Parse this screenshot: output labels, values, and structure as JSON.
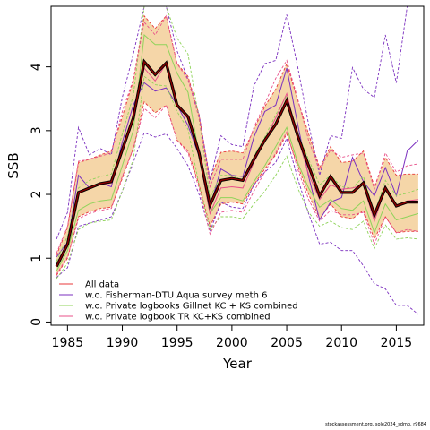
{
  "chart_data": {
    "type": "line",
    "title": "",
    "xlabel": "Year",
    "ylabel": "SSB",
    "xlim": [
      1983.5,
      2017.5
    ],
    "ylim": [
      -0.05,
      4.95
    ],
    "xticks": [
      1985,
      1990,
      1995,
      2000,
      2005,
      2010,
      2015
    ],
    "yticks": [
      0,
      1,
      2,
      3,
      4
    ],
    "x": [
      1984,
      1985,
      1986,
      1987,
      1988,
      1989,
      1990,
      1991,
      1992,
      1993,
      1994,
      1995,
      1996,
      1997,
      1998,
      1999,
      2000,
      2001,
      2002,
      2003,
      2004,
      2005,
      2006,
      2007,
      2008,
      2009,
      2010,
      2011,
      2012,
      2013,
      2014,
      2015,
      2016,
      2017
    ],
    "base": {
      "name": "All data",
      "estimate": [
        0.87,
        1.22,
        2.03,
        2.1,
        2.17,
        2.2,
        2.7,
        3.2,
        4.08,
        3.88,
        4.06,
        3.4,
        3.22,
        2.65,
        1.83,
        2.22,
        2.25,
        2.22,
        2.55,
        2.85,
        3.1,
        3.47,
        2.92,
        2.45,
        1.98,
        2.28,
        2.03,
        2.03,
        2.18,
        1.68,
        2.1,
        1.82,
        1.88,
        1.88
      ],
      "lower": [
        0.73,
        1.0,
        1.65,
        1.73,
        1.78,
        1.8,
        2.25,
        2.72,
        3.45,
        3.28,
        3.4,
        2.85,
        2.68,
        2.15,
        1.5,
        1.85,
        1.88,
        1.85,
        2.15,
        2.4,
        2.62,
        2.95,
        2.45,
        2.0,
        1.62,
        1.85,
        1.65,
        1.62,
        1.75,
        1.3,
        1.65,
        1.4,
        1.42,
        1.42
      ],
      "upper": [
        1.05,
        1.48,
        2.5,
        2.55,
        2.62,
        2.68,
        3.22,
        3.78,
        4.8,
        4.6,
        4.8,
        4.05,
        3.85,
        3.25,
        2.24,
        2.66,
        2.68,
        2.65,
        3.02,
        3.38,
        3.65,
        4.05,
        3.48,
        2.95,
        2.42,
        2.75,
        2.5,
        2.52,
        2.68,
        2.12,
        2.58,
        2.3,
        2.32,
        2.32
      ]
    },
    "series": [
      {
        "name": "All data",
        "color": "#e8383b",
        "values": [
          0.87,
          1.22,
          2.03,
          2.1,
          2.17,
          2.2,
          2.7,
          3.2,
          4.08,
          3.88,
          4.06,
          3.4,
          3.22,
          2.65,
          1.83,
          2.22,
          2.25,
          2.22,
          2.55,
          2.85,
          3.1,
          3.47,
          2.92,
          2.45,
          1.98,
          2.28,
          2.03,
          2.03,
          2.18,
          1.68,
          2.1,
          1.82,
          1.88,
          1.88
        ],
        "lower": [
          0.73,
          1.0,
          1.65,
          1.73,
          1.78,
          1.8,
          2.25,
          2.72,
          3.45,
          3.28,
          3.4,
          2.85,
          2.68,
          2.15,
          1.5,
          1.85,
          1.88,
          1.85,
          2.15,
          2.4,
          2.62,
          2.95,
          2.45,
          2.0,
          1.62,
          1.85,
          1.65,
          1.62,
          1.75,
          1.3,
          1.65,
          1.4,
          1.42,
          1.42
        ],
        "upper": [
          1.05,
          1.48,
          2.5,
          2.55,
          2.62,
          2.68,
          3.22,
          3.78,
          4.8,
          4.6,
          4.8,
          4.05,
          3.85,
          3.25,
          2.24,
          2.66,
          2.68,
          2.65,
          3.02,
          3.38,
          3.65,
          4.05,
          3.48,
          2.95,
          2.42,
          2.75,
          2.5,
          2.52,
          2.68,
          2.12,
          2.58,
          2.3,
          2.32,
          2.32
        ]
      },
      {
        "name": "w.o. Fisherman-DTU Aqua survey meth 6",
        "color": "#7b2fbf",
        "values": [
          1.02,
          1.25,
          2.3,
          2.1,
          2.18,
          2.12,
          2.82,
          3.4,
          3.75,
          3.62,
          3.67,
          3.4,
          3.08,
          2.6,
          1.8,
          2.4,
          2.3,
          2.28,
          2.9,
          3.3,
          3.4,
          3.98,
          3.1,
          2.28,
          1.6,
          1.88,
          1.95,
          2.58,
          2.2,
          1.98,
          2.42,
          1.98,
          2.68,
          2.85
        ],
        "lower": [
          0.7,
          0.85,
          1.5,
          1.55,
          1.6,
          1.65,
          2.05,
          2.5,
          2.97,
          2.9,
          2.95,
          2.72,
          2.45,
          2.0,
          1.42,
          1.88,
          1.8,
          1.78,
          2.15,
          2.35,
          2.5,
          2.88,
          2.25,
          1.7,
          1.22,
          1.25,
          1.12,
          1.12,
          0.88,
          0.6,
          0.52,
          0.26,
          0.26,
          0.12
        ],
        "upper": [
          1.3,
          1.72,
          3.05,
          2.62,
          2.72,
          2.62,
          3.52,
          4.2,
          4.95,
          4.95,
          4.95,
          4.25,
          3.8,
          3.25,
          2.22,
          2.92,
          2.78,
          2.75,
          3.7,
          4.05,
          4.1,
          4.82,
          4.0,
          3.1,
          2.3,
          2.92,
          2.88,
          3.99,
          3.65,
          3.52,
          4.5,
          3.75,
          4.95,
          4.95
        ]
      },
      {
        "name": "w.o. Private logbooks Gillnet KC + KS combined",
        "color": "#8fd35a",
        "values": [
          0.8,
          1.12,
          1.75,
          1.85,
          1.9,
          1.92,
          2.45,
          3.0,
          4.5,
          4.35,
          4.35,
          3.9,
          3.6,
          2.62,
          1.7,
          1.95,
          1.95,
          1.9,
          2.2,
          2.45,
          2.75,
          3.05,
          2.5,
          2.1,
          1.8,
          1.92,
          1.78,
          1.75,
          1.9,
          1.4,
          1.85,
          1.6,
          1.65,
          1.7
        ],
        "lower": [
          0.68,
          0.92,
          1.45,
          1.55,
          1.58,
          1.6,
          2.05,
          2.55,
          3.85,
          3.72,
          3.7,
          3.3,
          3.02,
          2.15,
          1.45,
          1.65,
          1.65,
          1.62,
          1.85,
          2.05,
          2.3,
          2.6,
          2.1,
          1.72,
          1.5,
          1.58,
          1.48,
          1.45,
          1.58,
          1.15,
          1.52,
          1.3,
          1.32,
          1.3
        ],
        "upper": [
          0.95,
          1.35,
          2.1,
          2.22,
          2.28,
          2.32,
          2.95,
          3.55,
          4.95,
          4.95,
          4.95,
          4.45,
          4.2,
          3.18,
          1.95,
          2.3,
          2.3,
          2.22,
          2.6,
          2.9,
          3.25,
          3.55,
          2.95,
          2.55,
          2.15,
          2.3,
          2.12,
          2.1,
          2.28,
          1.7,
          2.22,
          1.98,
          2.02,
          2.08
        ]
      },
      {
        "name": "w.o. Private logbook TR KC+KS combined",
        "color": "#e8508a",
        "values": [
          0.9,
          1.25,
          2.05,
          2.1,
          2.15,
          2.18,
          2.75,
          3.22,
          3.98,
          3.78,
          4.05,
          3.4,
          3.18,
          2.6,
          1.7,
          2.1,
          2.12,
          2.1,
          2.5,
          2.85,
          3.2,
          3.58,
          2.9,
          2.32,
          1.92,
          2.15,
          2.08,
          2.1,
          2.15,
          1.58,
          2.1,
          1.82,
          1.9,
          1.92
        ],
        "lower": [
          0.75,
          1.02,
          1.62,
          1.7,
          1.75,
          1.78,
          2.28,
          2.72,
          3.35,
          3.2,
          3.4,
          2.85,
          2.65,
          2.1,
          1.38,
          1.72,
          1.75,
          1.72,
          2.05,
          2.35,
          2.65,
          2.98,
          2.4,
          1.92,
          1.58,
          1.75,
          1.68,
          1.68,
          1.72,
          1.22,
          1.65,
          1.4,
          1.45,
          1.42
        ],
        "upper": [
          1.08,
          1.5,
          2.52,
          2.55,
          2.6,
          2.65,
          3.3,
          3.8,
          4.7,
          4.5,
          4.8,
          4.05,
          3.8,
          3.2,
          2.12,
          2.55,
          2.55,
          2.55,
          3.05,
          3.42,
          3.82,
          4.1,
          3.5,
          2.85,
          2.38,
          2.7,
          2.58,
          2.62,
          2.65,
          2.08,
          2.65,
          2.35,
          2.45,
          2.48
        ]
      }
    ],
    "legend_position": "bottom-left",
    "grid": false,
    "band_color": "#f5d6a8"
  },
  "footer_text": "stockassessment.org, sole2024_sdmb, r9684"
}
